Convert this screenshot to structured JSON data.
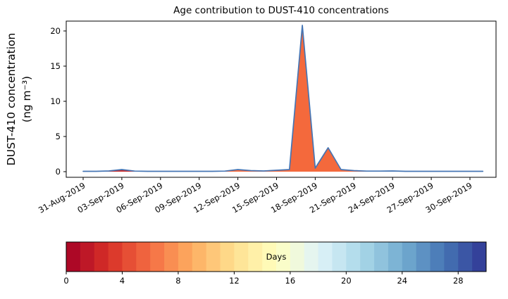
{
  "title": "Age contribution to DUST-410 concentrations",
  "ylabel_line1": "DUST-410 concentration",
  "ylabel_line2": "(ng m⁻³)",
  "chart_data": {
    "type": "area",
    "title": "Age contribution to DUST-410 concentrations",
    "xlabel": "",
    "ylabel": "DUST-410 concentration (ng m⁻³)",
    "grid": false,
    "legend": "none",
    "ylim": [
      -0.8,
      21.4
    ],
    "yticks": [
      0,
      5,
      10,
      15,
      20
    ],
    "xtick_labels": [
      "31-Aug-2019",
      "03-Sep-2019",
      "06-Sep-2019",
      "09-Sep-2019",
      "12-Sep-2019",
      "15-Sep-2019",
      "18-Sep-2019",
      "21-Sep-2019",
      "24-Sep-2019",
      "27-Sep-2019",
      "30-Sep-2019"
    ],
    "xtick_day_index": [
      0,
      3,
      6,
      9,
      12,
      15,
      18,
      21,
      24,
      27,
      30
    ],
    "x_dates": [
      "31-Aug-2019",
      "01-Sep-2019",
      "02-Sep-2019",
      "03-Sep-2019",
      "04-Sep-2019",
      "05-Sep-2019",
      "06-Sep-2019",
      "07-Sep-2019",
      "08-Sep-2019",
      "09-Sep-2019",
      "10-Sep-2019",
      "11-Sep-2019",
      "12-Sep-2019",
      "13-Sep-2019",
      "14-Sep-2019",
      "15-Sep-2019",
      "16-Sep-2019",
      "17-Sep-2019",
      "18-Sep-2019",
      "19-Sep-2019",
      "20-Sep-2019",
      "21-Sep-2019",
      "22-Sep-2019",
      "23-Sep-2019",
      "24-Sep-2019",
      "25-Sep-2019",
      "26-Sep-2019",
      "27-Sep-2019",
      "28-Sep-2019",
      "29-Sep-2019",
      "30-Sep-2019",
      "01-Oct-2019"
    ],
    "values": [
      0.05,
      0.05,
      0.1,
      0.3,
      0.08,
      0.05,
      0.05,
      0.05,
      0.05,
      0.05,
      0.05,
      0.08,
      0.3,
      0.15,
      0.1,
      0.2,
      0.3,
      20.8,
      0.5,
      3.4,
      0.3,
      0.15,
      0.08,
      0.08,
      0.1,
      0.05,
      0.05,
      0.05,
      0.05,
      0.05,
      0.05,
      0.05
    ],
    "overlay_values": [
      0,
      0,
      0.05,
      0.26,
      0.05,
      0,
      0,
      0,
      0,
      0,
      0,
      0,
      0,
      0,
      0,
      0,
      0,
      0,
      0,
      0,
      0,
      0,
      0,
      0,
      0,
      0,
      0,
      0,
      0,
      0,
      0,
      0
    ],
    "area_fill": "#f4693c",
    "overlay_fill": "#c52a2b",
    "line_color": "#4575b4",
    "peak_value": 20.8,
    "peak_date": "17-Sep-2019",
    "secondary_peak_value": 3.4,
    "secondary_peak_date": "19-Sep-2019"
  },
  "colorbar": {
    "label": "Days",
    "ticks": [
      0,
      4,
      8,
      12,
      16,
      20,
      24,
      28
    ],
    "range": [
      0,
      30
    ],
    "segments": 30,
    "cmap_name": "RdYlBu",
    "cmap_anchors": [
      "#a50026",
      "#d73027",
      "#f46d43",
      "#fdae61",
      "#fee090",
      "#ffffbf",
      "#e0f3f8",
      "#abd9e9",
      "#74add1",
      "#4575b4",
      "#313695"
    ]
  }
}
